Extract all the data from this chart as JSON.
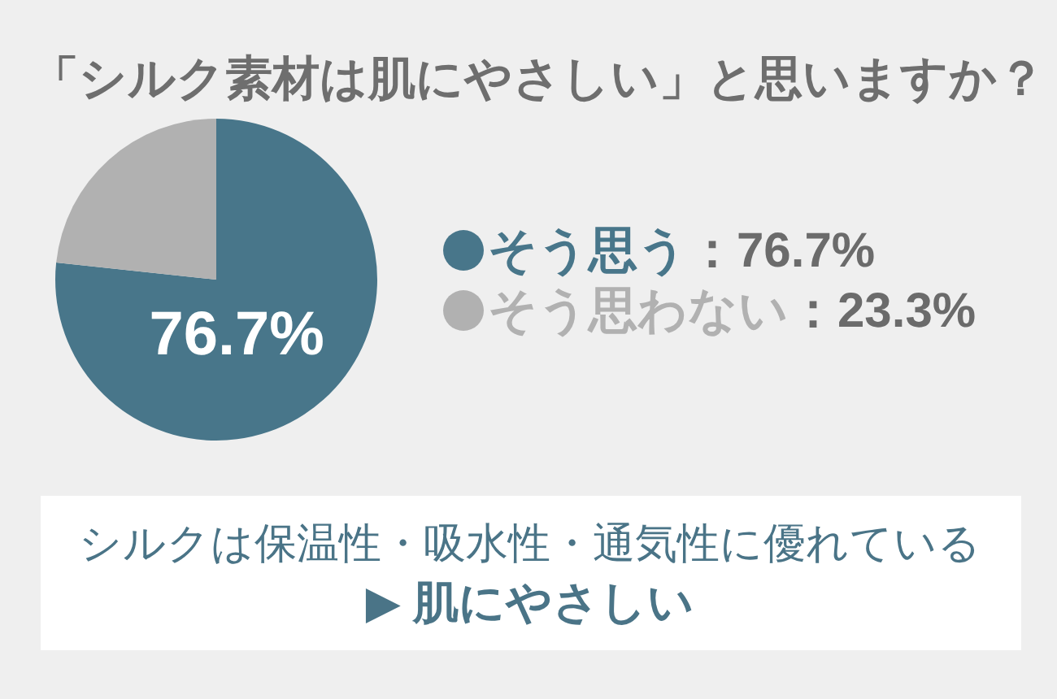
{
  "chart_data": {
    "type": "pie",
    "title": "「シルク素材は肌にやさしい」と思いますか？",
    "categories": [
      "そう思う",
      "そう思わない"
    ],
    "values": [
      76.7,
      23.3
    ],
    "colors": [
      "#48768a",
      "#b1b1b1"
    ],
    "value_labels": [
      "：76.7%",
      "：23.3%"
    ],
    "legend": "right",
    "annotations": [
      {
        "text": "76.7%",
        "x": "そう思う"
      },
      "シルクは保温性・吸水性・通気性に優れている",
      "▶ 肌にやさしい"
    ]
  }
}
